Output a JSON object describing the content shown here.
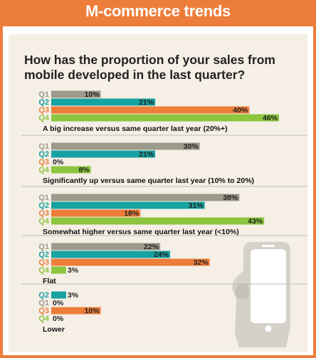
{
  "header": {
    "title": "M-commerce trends"
  },
  "question": "How has the proportion of your sales from mobile developed in the last quarter?",
  "colors": {
    "frame": "#ed7d3a",
    "panel": "#f5efe6",
    "separator": "#bdbdbd",
    "Q1": "#9c9a8c",
    "Q2": "#17a2a2",
    "Q3": "#ed7d3a",
    "Q4": "#8cc63f",
    "phone": "#d5d1c8"
  },
  "chart_data": {
    "type": "bar",
    "orientation": "horizontal",
    "title": "How has the proportion of your sales from mobile developed in the last quarter?",
    "groups": [
      {
        "label": "A big increase versus same quarter last year (20%+)",
        "bars": [
          {
            "quarter": "Q1",
            "value": 10
          },
          {
            "quarter": "Q2",
            "value": 21
          },
          {
            "quarter": "Q3",
            "value": 40
          },
          {
            "quarter": "Q4",
            "value": 46
          }
        ]
      },
      {
        "label": "Significantly up versus same quarter last year (10% to 20%)",
        "bars": [
          {
            "quarter": "Q1",
            "value": 30
          },
          {
            "quarter": "Q2",
            "value": 21
          },
          {
            "quarter": "Q3",
            "value": 0
          },
          {
            "quarter": "Q4",
            "value": 8
          }
        ]
      },
      {
        "label": "Somewhat higher versus same quarter last year (<10%)",
        "bars": [
          {
            "quarter": "Q1",
            "value": 38
          },
          {
            "quarter": "Q2",
            "value": 31
          },
          {
            "quarter": "Q3",
            "value": 18
          },
          {
            "quarter": "Q4",
            "value": 43
          }
        ]
      },
      {
        "label": "Flat",
        "bars": [
          {
            "quarter": "Q1",
            "value": 22
          },
          {
            "quarter": "Q2",
            "value": 24
          },
          {
            "quarter": "Q3",
            "value": 32
          },
          {
            "quarter": "Q4",
            "value": 3
          }
        ]
      },
      {
        "label": "Lower",
        "bars": [
          {
            "quarter": "Q2",
            "value": 3
          },
          {
            "quarter": "Q1",
            "value": 0
          },
          {
            "quarter": "Q3",
            "value": 10
          },
          {
            "quarter": "Q4",
            "value": 0
          }
        ]
      }
    ],
    "value_suffix": "%",
    "xlim": [
      0,
      46
    ]
  }
}
